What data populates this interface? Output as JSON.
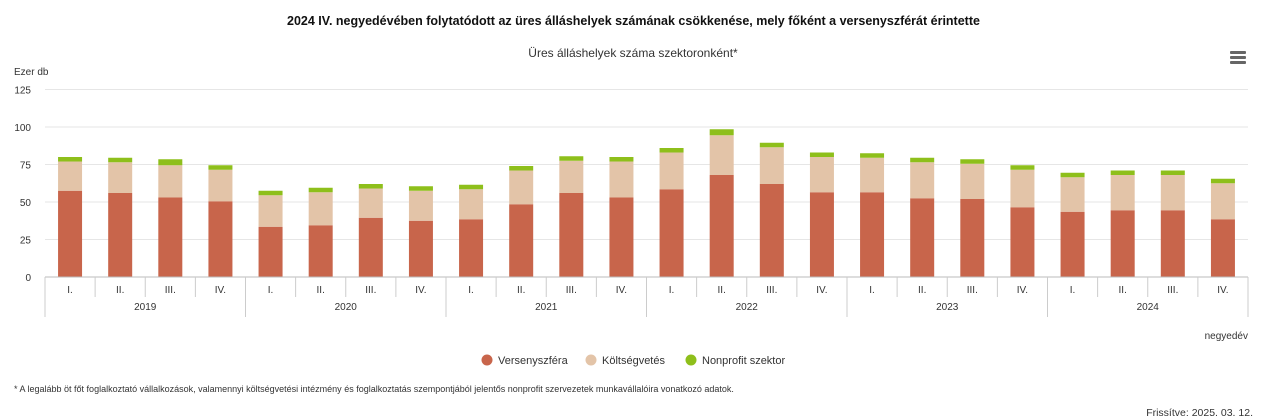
{
  "page_title": "2024 IV. negyedévében folytatódott az üres álláshelyek számának csökkenése, mely főként a versenyszférát érintette",
  "menu_icon": "hamburger-menu-icon",
  "footnote": "* A legalább öt főt foglalkoztató vállalkozások, valamennyi költségvetési intézmény és foglalkoztatás szempontjából jelentős nonprofit szervezetek munkavállalóira vonatkozó adatok.",
  "updated": "Frissítve: 2025. 03. 12.",
  "chart_data": {
    "type": "bar",
    "stacked": true,
    "title": "Üres álláshelyek száma szektoronként*",
    "ylabel": "Ezer db",
    "xlabel": "negyedév",
    "ylim": [
      0,
      125
    ],
    "yticks": [
      0,
      25,
      50,
      75,
      100,
      125
    ],
    "grid": true,
    "legend_position": "bottom-center",
    "categories": [
      "I.",
      "II.",
      "III.",
      "IV.",
      "I.",
      "II.",
      "III.",
      "IV.",
      "I.",
      "II.",
      "III.",
      "IV.",
      "I.",
      "II.",
      "III.",
      "IV.",
      "I.",
      "II.",
      "III.",
      "IV.",
      "I.",
      "II.",
      "III.",
      "IV."
    ],
    "groups": [
      {
        "label": "2019",
        "count": 4
      },
      {
        "label": "2020",
        "count": 4
      },
      {
        "label": "2021",
        "count": 4
      },
      {
        "label": "2022",
        "count": 4
      },
      {
        "label": "2023",
        "count": 4
      },
      {
        "label": "2024",
        "count": 4
      }
    ],
    "series": [
      {
        "name": "Versenyszféra",
        "color": "#c8654b",
        "values": [
          57.5,
          56,
          53,
          50.5,
          33.5,
          34.5,
          39.5,
          37.5,
          38.5,
          48.5,
          56,
          53,
          58.5,
          68,
          62,
          56.5,
          56.5,
          52.5,
          52,
          46.5,
          43.5,
          44.5,
          44.5,
          38.5
        ]
      },
      {
        "name": "Költségvetés",
        "color": "#e3c4a8",
        "values": [
          19.5,
          20.5,
          21.5,
          21,
          21,
          22,
          19.5,
          20,
          20,
          22.5,
          21.5,
          24,
          24.5,
          26.5,
          24.5,
          23.5,
          23,
          24,
          23.5,
          25,
          23,
          23.5,
          23.5,
          24
        ]
      },
      {
        "name": "Nonprofit szektor",
        "color": "#8ebf1b",
        "values": [
          3,
          3,
          4,
          3,
          3,
          3,
          3,
          3,
          3,
          3,
          3,
          3,
          3,
          4,
          3,
          3,
          3,
          3,
          3,
          3,
          3,
          3,
          3,
          3
        ]
      }
    ]
  }
}
